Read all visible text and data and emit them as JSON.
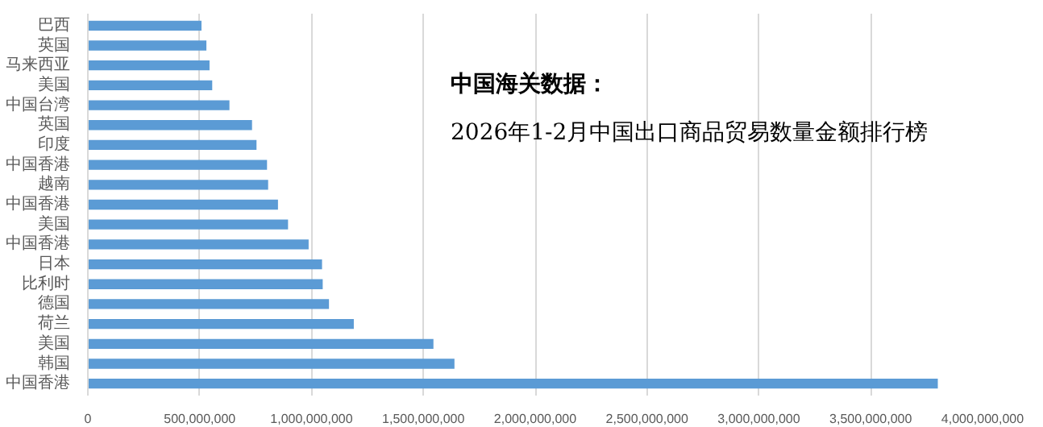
{
  "chart_data": {
    "type": "bar",
    "orientation": "horizontal",
    "title": "中国海关数据：",
    "subtitle": "2026年1-2月中国出口商品贸易数量金额排行榜",
    "categories": [
      "巴西",
      "英国",
      "马来西亚",
      "美国",
      "中国台湾",
      "英国",
      "印度",
      "中国香港",
      "越南",
      "中国香港",
      "美国",
      "中国香港",
      "日本",
      "比利时",
      "德国",
      "荷兰",
      "美国",
      "韩国",
      "中国香港"
    ],
    "values": [
      508000000,
      530000000,
      544000000,
      556000000,
      633000000,
      734000000,
      754000000,
      801000000,
      806000000,
      850000000,
      895000000,
      987000000,
      1047000000,
      1050000000,
      1078000000,
      1189000000,
      1545000000,
      1639000000,
      3800000000
    ],
    "color": "#5b9bd5",
    "xlim": [
      0,
      4000000000
    ],
    "xticks": [
      0,
      {
        "value": 500000000,
        "label": "500,000,000"
      },
      {
        "value": 1000000000,
        "label": "1,000,000,000"
      },
      {
        "value": 1500000000,
        "label": "1,500,000,000"
      },
      {
        "value": 2000000000,
        "label": "2,000,000,000"
      },
      {
        "value": 2500000000,
        "label": "2,500,000,000"
      },
      {
        "value": 3000000000,
        "label": "3,000,000,000"
      },
      {
        "value": 3500000000,
        "label": "3,500,000,000"
      },
      {
        "value": 4000000000,
        "label": "4,000,000,000"
      }
    ],
    "grid": "x"
  }
}
